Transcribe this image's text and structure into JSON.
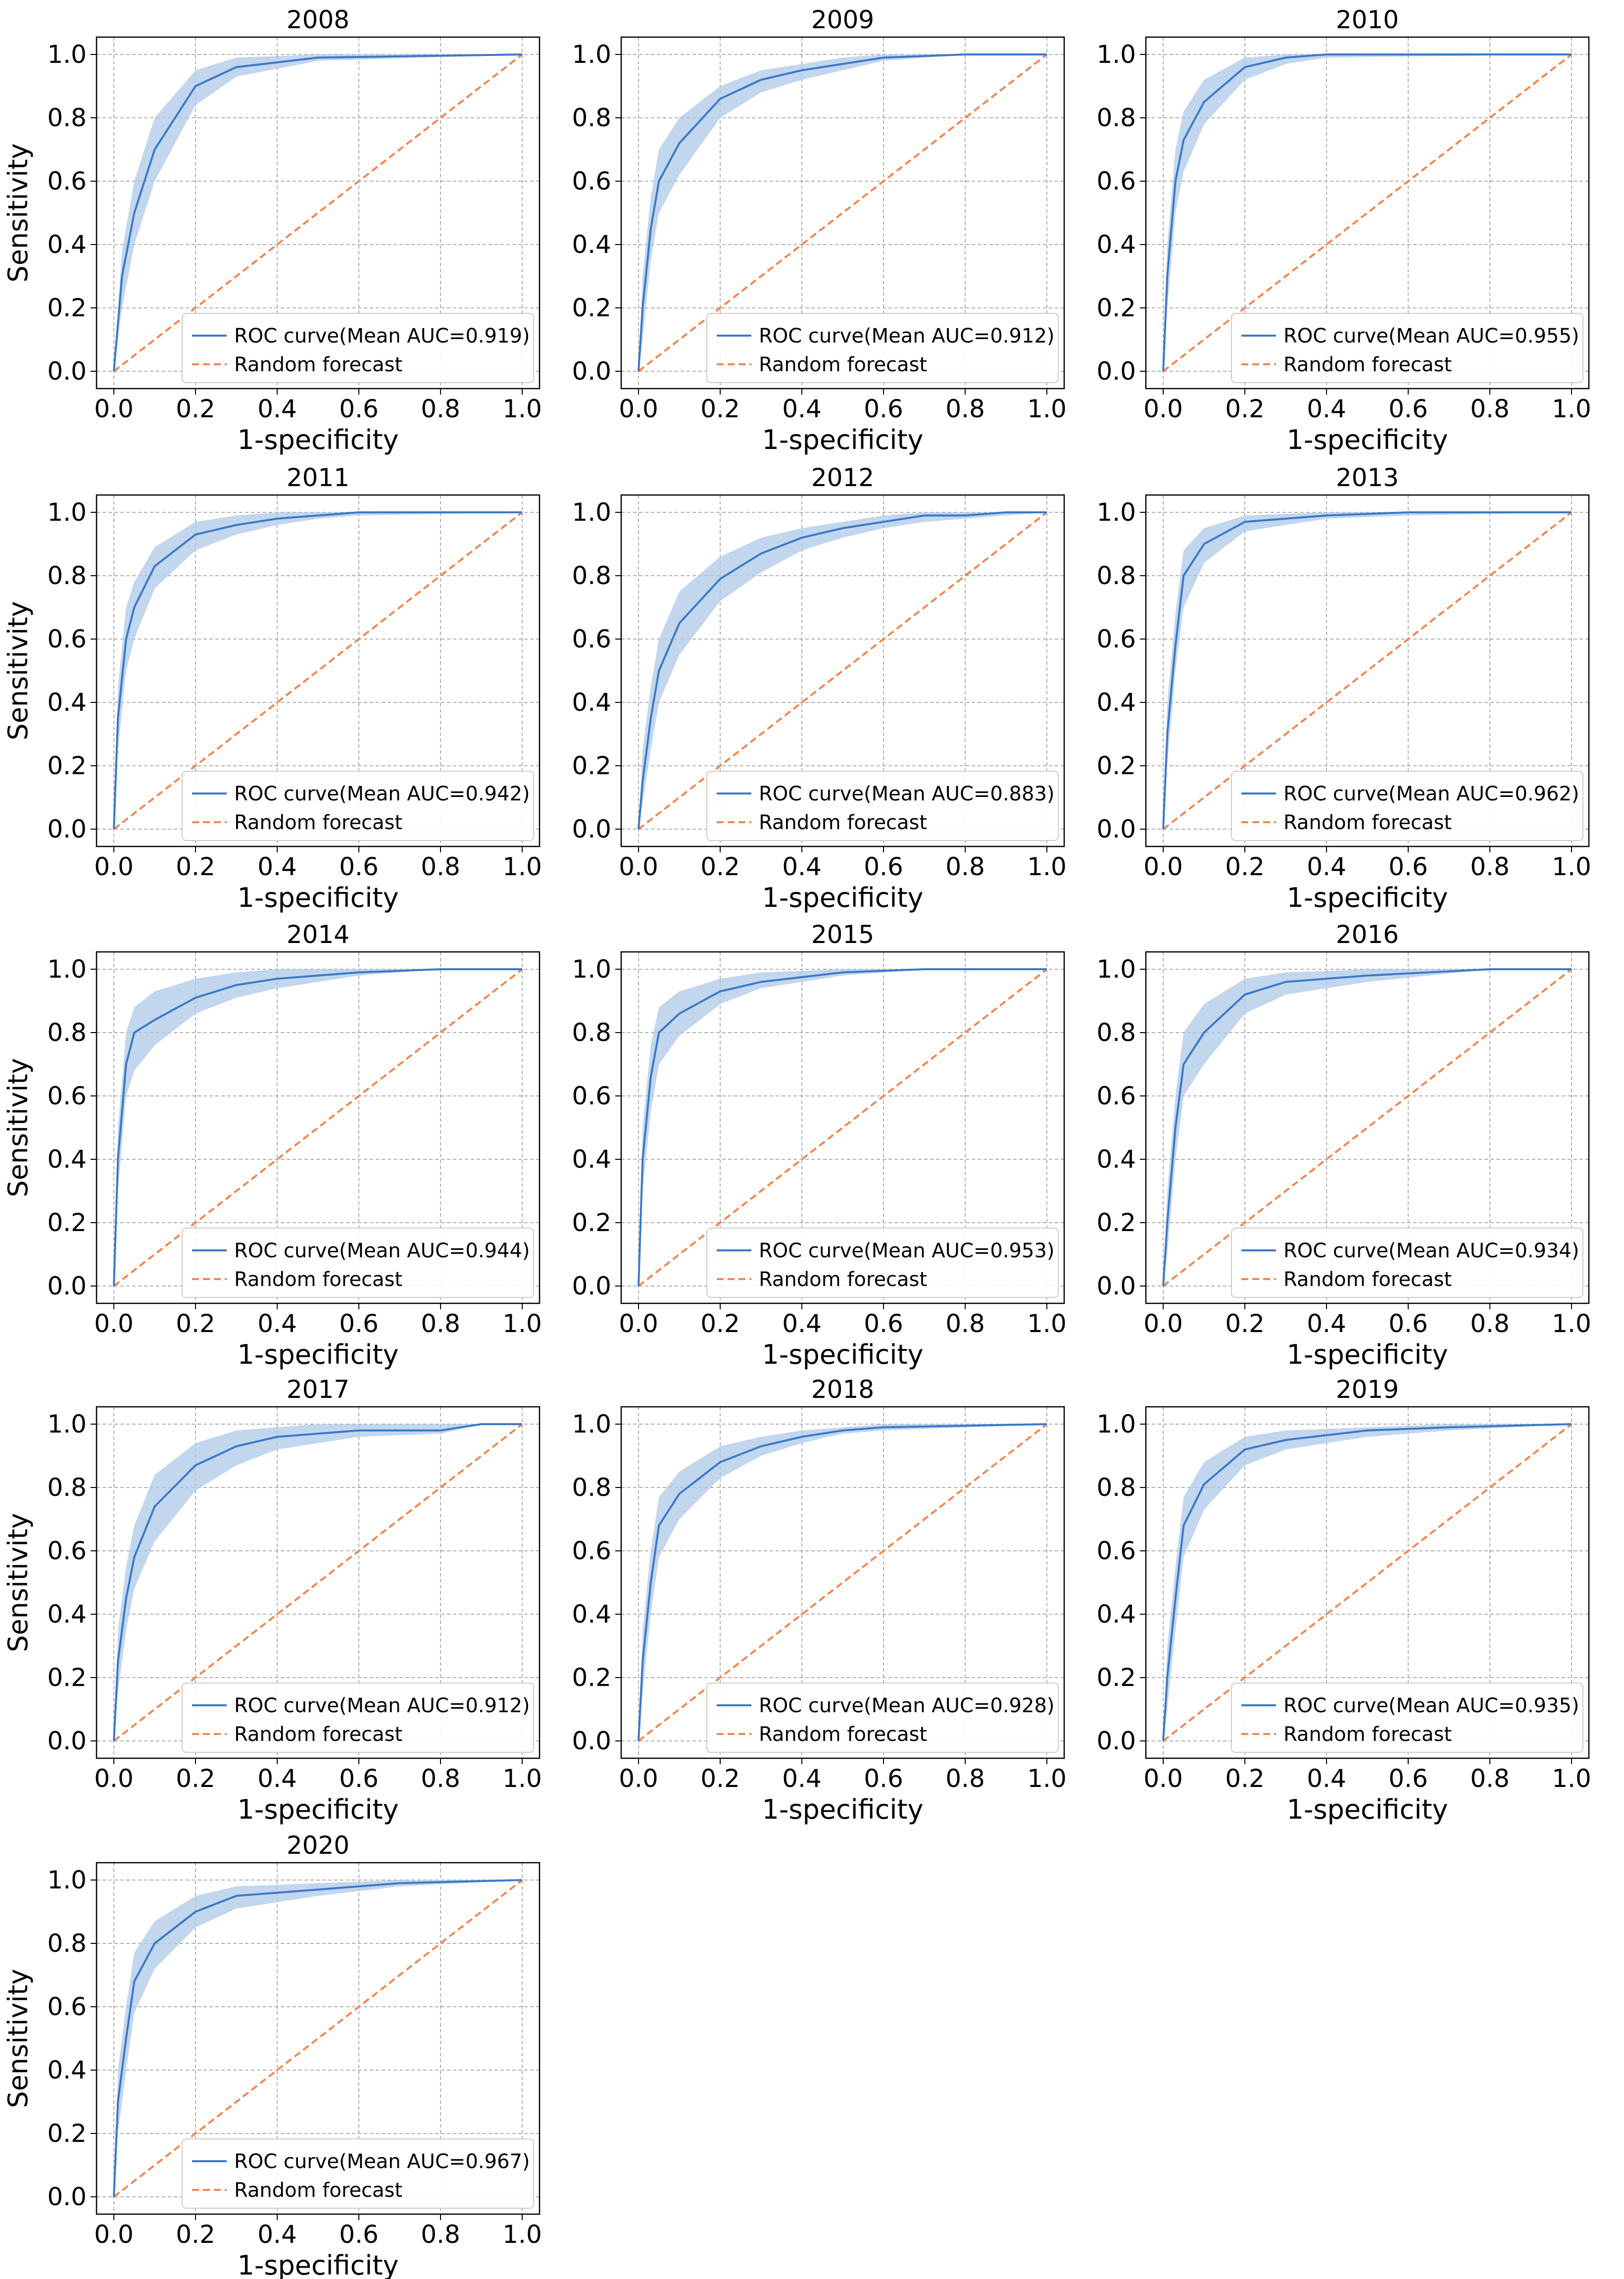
{
  "figure": {
    "xlabel": "1-specificity",
    "ylabel": "Sensitivity",
    "legend_curve_prefix": "ROC curve(Mean AUC=",
    "legend_curve_suffix": ")",
    "legend_random": "Random forecast",
    "xticks": [
      "0.0",
      "0.2",
      "0.4",
      "0.6",
      "0.8",
      "1.0"
    ],
    "yticks": [
      "0.0",
      "0.2",
      "0.4",
      "0.6",
      "0.8",
      "1.0"
    ],
    "colors": {
      "roc": "#3a78c8",
      "band": "#aec8e8",
      "random": "#f4844c",
      "grid": "#b0b0b0"
    }
  },
  "chart_data": [
    {
      "type": "line",
      "title": "2008",
      "auc": "0.919",
      "xlabel": "1-specificity",
      "ylabel": "Sensitivity",
      "xlim": [
        0,
        1
      ],
      "ylim": [
        0,
        1
      ],
      "legend": "bottom-right",
      "series": [
        {
          "name": "ROC curve(Mean AUC=0.919)",
          "x": [
            0,
            0.02,
            0.05,
            0.1,
            0.2,
            0.3,
            0.5,
            1.0
          ],
          "y": [
            0,
            0.3,
            0.5,
            0.7,
            0.9,
            0.96,
            0.99,
            1.0
          ],
          "band_lower": [
            0,
            0.2,
            0.4,
            0.6,
            0.84,
            0.93,
            0.98,
            1.0
          ],
          "band_upper": [
            0,
            0.38,
            0.6,
            0.8,
            0.95,
            0.99,
            1.0,
            1.0
          ]
        },
        {
          "name": "Random forecast",
          "x": [
            0,
            1
          ],
          "y": [
            0,
            1
          ]
        }
      ]
    },
    {
      "type": "line",
      "title": "2009",
      "auc": "0.912",
      "xlabel": "1-specificity",
      "ylabel": "Sensitivity",
      "xlim": [
        0,
        1
      ],
      "ylim": [
        0,
        1
      ],
      "legend": "bottom-right",
      "series": [
        {
          "name": "ROC curve(Mean AUC=0.912)",
          "x": [
            0,
            0.01,
            0.03,
            0.05,
            0.1,
            0.2,
            0.3,
            0.4,
            0.5,
            0.6,
            0.8,
            1.0
          ],
          "y": [
            0,
            0.2,
            0.45,
            0.6,
            0.72,
            0.86,
            0.92,
            0.95,
            0.97,
            0.99,
            1.0,
            1.0
          ],
          "band_lower": [
            0,
            0.1,
            0.35,
            0.5,
            0.62,
            0.8,
            0.88,
            0.92,
            0.95,
            0.98,
            1.0,
            1.0
          ],
          "band_upper": [
            0,
            0.3,
            0.55,
            0.7,
            0.8,
            0.9,
            0.95,
            0.97,
            0.99,
            1.0,
            1.0,
            1.0
          ]
        },
        {
          "name": "Random forecast",
          "x": [
            0,
            1
          ],
          "y": [
            0,
            1
          ]
        }
      ]
    },
    {
      "type": "line",
      "title": "2010",
      "auc": "0.955",
      "xlabel": "1-specificity",
      "ylabel": "Sensitivity",
      "xlim": [
        0,
        1
      ],
      "ylim": [
        0,
        1
      ],
      "legend": "bottom-right",
      "series": [
        {
          "name": "ROC curve(Mean AUC=0.955)",
          "x": [
            0,
            0.01,
            0.03,
            0.05,
            0.1,
            0.2,
            0.3,
            0.4,
            1.0
          ],
          "y": [
            0,
            0.3,
            0.6,
            0.73,
            0.85,
            0.96,
            0.99,
            1.0,
            1.0
          ],
          "band_lower": [
            0,
            0.2,
            0.5,
            0.63,
            0.78,
            0.92,
            0.97,
            0.99,
            1.0
          ],
          "band_upper": [
            0,
            0.4,
            0.7,
            0.82,
            0.92,
            0.99,
            1.0,
            1.0,
            1.0
          ]
        },
        {
          "name": "Random forecast",
          "x": [
            0,
            1
          ],
          "y": [
            0,
            1
          ]
        }
      ]
    },
    {
      "type": "line",
      "title": "2011",
      "auc": "0.942",
      "xlabel": "1-specificity",
      "ylabel": "Sensitivity",
      "xlim": [
        0,
        1
      ],
      "ylim": [
        0,
        1
      ],
      "legend": "bottom-right",
      "series": [
        {
          "name": "ROC curve(Mean AUC=0.942)",
          "x": [
            0,
            0.01,
            0.03,
            0.05,
            0.1,
            0.2,
            0.3,
            0.4,
            0.5,
            0.6,
            1.0
          ],
          "y": [
            0,
            0.35,
            0.6,
            0.7,
            0.83,
            0.93,
            0.96,
            0.98,
            0.99,
            1.0,
            1.0
          ],
          "band_lower": [
            0,
            0.25,
            0.5,
            0.6,
            0.76,
            0.88,
            0.93,
            0.96,
            0.98,
            0.99,
            1.0
          ],
          "band_upper": [
            0,
            0.45,
            0.7,
            0.78,
            0.89,
            0.97,
            0.99,
            1.0,
            1.0,
            1.0,
            1.0
          ]
        },
        {
          "name": "Random forecast",
          "x": [
            0,
            1
          ],
          "y": [
            0,
            1
          ]
        }
      ]
    },
    {
      "type": "line",
      "title": "2012",
      "auc": "0.883",
      "xlabel": "1-specificity",
      "ylabel": "Sensitivity",
      "xlim": [
        0,
        1
      ],
      "ylim": [
        0,
        1
      ],
      "legend": "bottom-right",
      "series": [
        {
          "name": "ROC curve(Mean AUC=0.883)",
          "x": [
            0,
            0.01,
            0.03,
            0.05,
            0.1,
            0.2,
            0.3,
            0.4,
            0.5,
            0.6,
            0.7,
            0.8,
            0.9,
            1.0
          ],
          "y": [
            0,
            0.15,
            0.35,
            0.5,
            0.65,
            0.79,
            0.87,
            0.92,
            0.95,
            0.97,
            0.99,
            0.99,
            1.0,
            1.0
          ],
          "band_lower": [
            0,
            0.08,
            0.25,
            0.4,
            0.55,
            0.72,
            0.81,
            0.88,
            0.92,
            0.95,
            0.97,
            0.98,
            0.99,
            1.0
          ],
          "band_upper": [
            0,
            0.25,
            0.45,
            0.6,
            0.75,
            0.86,
            0.92,
            0.95,
            0.97,
            0.99,
            1.0,
            1.0,
            1.0,
            1.0
          ]
        },
        {
          "name": "Random forecast",
          "x": [
            0,
            1
          ],
          "y": [
            0,
            1
          ]
        }
      ]
    },
    {
      "type": "line",
      "title": "2013",
      "auc": "0.962",
      "xlabel": "1-specificity",
      "ylabel": "Sensitivity",
      "xlim": [
        0,
        1
      ],
      "ylim": [
        0,
        1
      ],
      "legend": "bottom-right",
      "series": [
        {
          "name": "ROC curve(Mean AUC=0.962)",
          "x": [
            0,
            0.01,
            0.03,
            0.05,
            0.1,
            0.2,
            0.4,
            0.6,
            1.0
          ],
          "y": [
            0,
            0.3,
            0.58,
            0.8,
            0.9,
            0.97,
            0.99,
            1.0,
            1.0
          ],
          "band_lower": [
            0,
            0.2,
            0.5,
            0.7,
            0.84,
            0.94,
            0.98,
            0.99,
            1.0
          ],
          "band_upper": [
            0,
            0.4,
            0.68,
            0.88,
            0.95,
            0.99,
            1.0,
            1.0,
            1.0
          ]
        },
        {
          "name": "Random forecast",
          "x": [
            0,
            1
          ],
          "y": [
            0,
            1
          ]
        }
      ]
    },
    {
      "type": "line",
      "title": "2014",
      "auc": "0.944",
      "xlabel": "1-specificity",
      "ylabel": "Sensitivity",
      "xlim": [
        0,
        1
      ],
      "ylim": [
        0,
        1
      ],
      "legend": "bottom-right",
      "series": [
        {
          "name": "ROC curve(Mean AUC=0.944)",
          "x": [
            0,
            0.01,
            0.03,
            0.05,
            0.1,
            0.2,
            0.3,
            0.4,
            0.6,
            0.8,
            1.0
          ],
          "y": [
            0,
            0.4,
            0.7,
            0.8,
            0.84,
            0.91,
            0.95,
            0.97,
            0.99,
            1.0,
            1.0
          ],
          "band_lower": [
            0,
            0.3,
            0.6,
            0.68,
            0.76,
            0.86,
            0.91,
            0.94,
            0.98,
            1.0,
            1.0
          ],
          "band_upper": [
            0,
            0.5,
            0.8,
            0.88,
            0.93,
            0.97,
            0.99,
            1.0,
            1.0,
            1.0,
            1.0
          ]
        },
        {
          "name": "Random forecast",
          "x": [
            0,
            1
          ],
          "y": [
            0,
            1
          ]
        }
      ]
    },
    {
      "type": "line",
      "title": "2015",
      "auc": "0.953",
      "xlabel": "1-specificity",
      "ylabel": "Sensitivity",
      "xlim": [
        0,
        1
      ],
      "ylim": [
        0,
        1
      ],
      "legend": "bottom-right",
      "series": [
        {
          "name": "ROC curve(Mean AUC=0.953)",
          "x": [
            0,
            0.01,
            0.03,
            0.05,
            0.1,
            0.2,
            0.3,
            0.5,
            0.7,
            1.0
          ],
          "y": [
            0,
            0.4,
            0.66,
            0.8,
            0.86,
            0.93,
            0.96,
            0.99,
            1.0,
            1.0
          ],
          "band_lower": [
            0,
            0.3,
            0.55,
            0.7,
            0.79,
            0.89,
            0.94,
            0.98,
            1.0,
            1.0
          ],
          "band_upper": [
            0,
            0.5,
            0.76,
            0.88,
            0.93,
            0.97,
            0.99,
            1.0,
            1.0,
            1.0
          ]
        },
        {
          "name": "Random forecast",
          "x": [
            0,
            1
          ],
          "y": [
            0,
            1
          ]
        }
      ]
    },
    {
      "type": "line",
      "title": "2016",
      "auc": "0.934",
      "xlabel": "1-specificity",
      "ylabel": "Sensitivity",
      "xlim": [
        0,
        1
      ],
      "ylim": [
        0,
        1
      ],
      "legend": "bottom-right",
      "series": [
        {
          "name": "ROC curve(Mean AUC=0.934)",
          "x": [
            0,
            0.01,
            0.03,
            0.05,
            0.1,
            0.2,
            0.3,
            0.5,
            0.8,
            1.0
          ],
          "y": [
            0,
            0.2,
            0.5,
            0.7,
            0.8,
            0.92,
            0.96,
            0.98,
            1.0,
            1.0
          ],
          "band_lower": [
            0,
            0.1,
            0.4,
            0.6,
            0.7,
            0.86,
            0.92,
            0.96,
            1.0,
            1.0
          ],
          "band_upper": [
            0,
            0.3,
            0.6,
            0.8,
            0.89,
            0.97,
            0.99,
            1.0,
            1.0,
            1.0
          ]
        },
        {
          "name": "Random forecast",
          "x": [
            0,
            1
          ],
          "y": [
            0,
            1
          ]
        }
      ]
    },
    {
      "type": "line",
      "title": "2017",
      "auc": "0.912",
      "xlabel": "1-specificity",
      "ylabel": "Sensitivity",
      "xlim": [
        0,
        1
      ],
      "ylim": [
        0,
        1
      ],
      "legend": "bottom-right",
      "series": [
        {
          "name": "ROC curve(Mean AUC=0.912)",
          "x": [
            0,
            0.01,
            0.03,
            0.05,
            0.1,
            0.2,
            0.3,
            0.4,
            0.5,
            0.6,
            0.8,
            0.9,
            1.0
          ],
          "y": [
            0,
            0.25,
            0.45,
            0.58,
            0.74,
            0.87,
            0.93,
            0.96,
            0.97,
            0.98,
            0.98,
            1.0,
            1.0
          ],
          "band_lower": [
            0,
            0.15,
            0.35,
            0.48,
            0.63,
            0.79,
            0.87,
            0.92,
            0.94,
            0.96,
            0.97,
            1.0,
            1.0
          ],
          "band_upper": [
            0,
            0.35,
            0.55,
            0.68,
            0.84,
            0.94,
            0.98,
            0.99,
            1.0,
            1.0,
            1.0,
            1.0,
            1.0
          ]
        },
        {
          "name": "Random forecast",
          "x": [
            0,
            1
          ],
          "y": [
            0,
            1
          ]
        }
      ]
    },
    {
      "type": "line",
      "title": "2018",
      "auc": "0.928",
      "xlabel": "1-specificity",
      "ylabel": "Sensitivity",
      "xlim": [
        0,
        1
      ],
      "ylim": [
        0,
        1
      ],
      "legend": "bottom-right",
      "series": [
        {
          "name": "ROC curve(Mean AUC=0.928)",
          "x": [
            0,
            0.01,
            0.03,
            0.05,
            0.1,
            0.2,
            0.3,
            0.4,
            0.5,
            0.6,
            1.0
          ],
          "y": [
            0,
            0.25,
            0.5,
            0.68,
            0.78,
            0.88,
            0.93,
            0.96,
            0.98,
            0.99,
            1.0
          ],
          "band_lower": [
            0,
            0.15,
            0.4,
            0.58,
            0.7,
            0.83,
            0.9,
            0.94,
            0.97,
            0.98,
            1.0
          ],
          "band_upper": [
            0,
            0.35,
            0.6,
            0.77,
            0.85,
            0.93,
            0.96,
            0.98,
            0.99,
            1.0,
            1.0
          ]
        },
        {
          "name": "Random forecast",
          "x": [
            0,
            1
          ],
          "y": [
            0,
            1
          ]
        }
      ]
    },
    {
      "type": "line",
      "title": "2019",
      "auc": "0.935",
      "xlabel": "1-specificity",
      "ylabel": "Sensitivity",
      "xlim": [
        0,
        1
      ],
      "ylim": [
        0,
        1
      ],
      "legend": "bottom-right",
      "series": [
        {
          "name": "ROC curve(Mean AUC=0.935)",
          "x": [
            0,
            0.01,
            0.03,
            0.05,
            0.1,
            0.2,
            0.3,
            0.5,
            0.7,
            1.0
          ],
          "y": [
            0,
            0.2,
            0.45,
            0.68,
            0.81,
            0.92,
            0.95,
            0.98,
            0.99,
            1.0
          ],
          "band_lower": [
            0,
            0.1,
            0.35,
            0.58,
            0.73,
            0.87,
            0.92,
            0.96,
            0.98,
            1.0
          ],
          "band_upper": [
            0,
            0.3,
            0.55,
            0.77,
            0.88,
            0.96,
            0.98,
            0.99,
            1.0,
            1.0
          ]
        },
        {
          "name": "Random forecast",
          "x": [
            0,
            1
          ],
          "y": [
            0,
            1
          ]
        }
      ]
    },
    {
      "type": "line",
      "title": "2020",
      "auc": "0.967",
      "xlabel": "1-specificity",
      "ylabel": "Sensitivity",
      "xlim": [
        0,
        1
      ],
      "ylim": [
        0,
        1
      ],
      "legend": "bottom-right",
      "series": [
        {
          "name": "ROC curve(Mean AUC=0.967)",
          "x": [
            0,
            0.01,
            0.03,
            0.05,
            0.1,
            0.2,
            0.3,
            0.5,
            0.7,
            1.0
          ],
          "y": [
            0,
            0.3,
            0.5,
            0.68,
            0.8,
            0.9,
            0.95,
            0.97,
            0.99,
            1.0
          ],
          "band_lower": [
            0,
            0.2,
            0.4,
            0.58,
            0.72,
            0.85,
            0.91,
            0.95,
            0.98,
            1.0
          ],
          "band_upper": [
            0,
            0.4,
            0.6,
            0.77,
            0.87,
            0.95,
            0.98,
            0.99,
            1.0,
            1.0
          ]
        },
        {
          "name": "Random forecast",
          "x": [
            0,
            1
          ],
          "y": [
            0,
            1
          ]
        }
      ]
    }
  ]
}
